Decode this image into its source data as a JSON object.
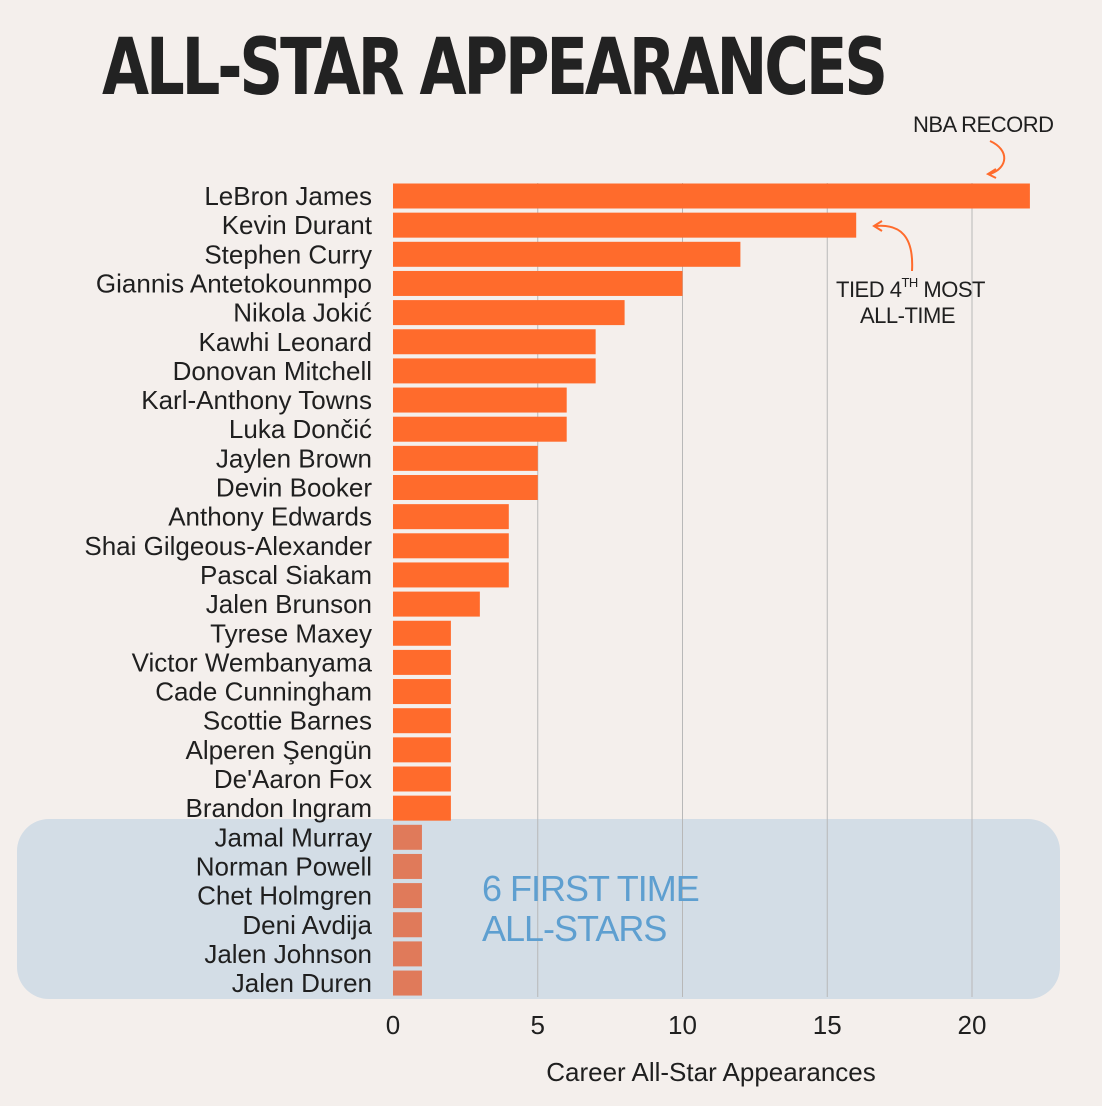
{
  "chart_data": {
    "type": "bar",
    "orientation": "horizontal",
    "title": "ALL-STAR APPEARANCES",
    "xlabel": "Career All-Star Appearances",
    "ylabel": "",
    "xlim": [
      0,
      22
    ],
    "xticks": [
      0,
      5,
      10,
      15,
      20
    ],
    "grid": "vertical",
    "categories": [
      "LeBron James",
      "Kevin Durant",
      "Stephen Curry",
      "Giannis Antetokounmpo",
      "Nikola Jokić",
      "Kawhi Leonard",
      "Donovan Mitchell",
      "Karl-Anthony Towns",
      "Luka Dončić",
      "Jaylen Brown",
      "Devin Booker",
      "Anthony Edwards",
      "Shai Gilgeous-Alexander",
      "Pascal Siakam",
      "Jalen Brunson",
      "Tyrese Maxey",
      "Victor Wembanyama",
      "Cade Cunningham",
      "Scottie Barnes",
      "Alperen Şengün",
      "De'Aaron Fox",
      "Brandon Ingram",
      "Jamal Murray",
      "Norman Powell",
      "Chet Holmgren",
      "Deni Avdija",
      "Jalen Johnson",
      "Jalen Duren"
    ],
    "values": [
      22,
      16,
      12,
      10,
      8,
      7,
      7,
      6,
      6,
      5,
      5,
      4,
      4,
      4,
      3,
      2,
      2,
      2,
      2,
      2,
      2,
      2,
      1,
      1,
      1,
      1,
      1,
      1
    ],
    "highlight": {
      "from_index": 22,
      "label_lines": [
        "6 FIRST TIME",
        "ALL-STARS"
      ]
    },
    "annotations": {
      "record": "NBA RECORD",
      "tied_line1_pre": "TIED 4",
      "tied_sup": "TH",
      "tied_line1_post": " MOST",
      "tied_line2": "ALL-TIME"
    },
    "colors": {
      "bar": "#ff6b2c",
      "bar_first_time": "#e07a5a",
      "highlight_box": "#d3dde6",
      "highlight_text": "#5e9fd0",
      "text": "#1f1f1f",
      "grid": "#b8b8b8"
    }
  }
}
